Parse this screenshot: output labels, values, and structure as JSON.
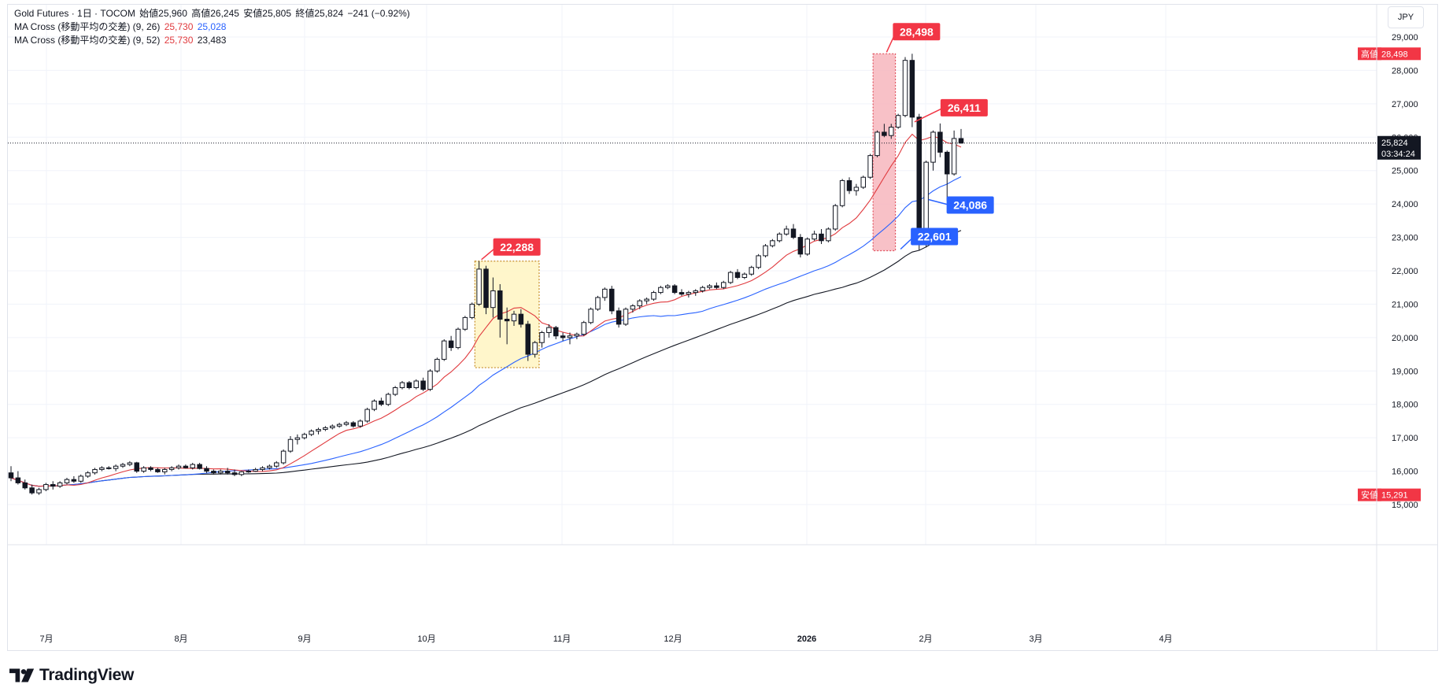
{
  "legend": {
    "symbol": "Gold Futures · 1日 · TOCOM",
    "open_label": "始値",
    "open": "25,960",
    "high_label": "高値",
    "high": "26,245",
    "low_label": "安値",
    "low": "25,805",
    "close_label": "終値",
    "close": "25,824",
    "change": "−241 (−0.92%)",
    "indicators": [
      {
        "name": "MA Cross (移動平均の交差) (9, 26)",
        "v1": "25,730",
        "v2": "25,028"
      },
      {
        "name": "MA Cross (移動平均の交差) (9, 52)",
        "v1": "25,730",
        "v2": "23,483"
      }
    ]
  },
  "currency": "JPY",
  "footer": {
    "logo_text": "TradingView"
  },
  "colors": {
    "up": "#ffffff",
    "down": "#131722",
    "ma_fast": "#e03a3e",
    "ma_mid": "#2962ff",
    "ma_slow": "#131722",
    "callout_red": "#f23645",
    "callout_blue": "#2962ff",
    "highlight_yellow": "#fff5c2",
    "highlight_red": "#f7b6bd"
  },
  "chart_data": {
    "type": "candlestick",
    "y_axis": {
      "ticks": [
        "15,000",
        "16,000",
        "17,000",
        "18,000",
        "19,000",
        "20,000",
        "21,000",
        "22,000",
        "23,000",
        "24,000",
        "25,000",
        "26,000",
        "27,000",
        "28,000",
        "29,000"
      ],
      "range": [
        14000,
        29500
      ]
    },
    "x_axis": {
      "ticks": [
        {
          "label": "7月",
          "bold": false
        },
        {
          "label": "8月",
          "bold": false
        },
        {
          "label": "9月",
          "bold": false
        },
        {
          "label": "10月",
          "bold": false
        },
        {
          "label": "11月",
          "bold": false
        },
        {
          "label": "12月",
          "bold": false
        },
        {
          "label": "2026",
          "bold": true
        },
        {
          "label": "2月",
          "bold": false
        },
        {
          "label": "3月",
          "bold": false
        },
        {
          "label": "4月",
          "bold": false
        }
      ]
    },
    "price_labels": [
      {
        "label": "高値",
        "value": "28,498",
        "price": 28498
      },
      {
        "label": "",
        "value": "25,824",
        "sub": "03:34:24",
        "price": 25824
      },
      {
        "label": "安値",
        "value": "15,291",
        "price": 15291
      }
    ],
    "callouts": [
      {
        "text": "22,288",
        "color": "red"
      },
      {
        "text": "28,498",
        "color": "red"
      },
      {
        "text": "26,411",
        "color": "red"
      },
      {
        "text": "24,086",
        "color": "blue"
      },
      {
        "text": "22,601",
        "color": "blue"
      }
    ],
    "highlight_zones": [
      {
        "color": "yellow",
        "high": 22288,
        "low": 19100
      },
      {
        "color": "red",
        "high": 28498,
        "low": 22601
      }
    ],
    "candles": [
      [
        15950,
        16150,
        15700,
        15800
      ],
      [
        15800,
        16000,
        15600,
        15650
      ],
      [
        15650,
        15750,
        15450,
        15500
      ],
      [
        15500,
        15600,
        15300,
        15350
      ],
      [
        15350,
        15500,
        15291,
        15450
      ],
      [
        15450,
        15650,
        15400,
        15600
      ],
      [
        15600,
        15700,
        15450,
        15550
      ],
      [
        15550,
        15700,
        15500,
        15650
      ],
      [
        15650,
        15800,
        15600,
        15750
      ],
      [
        15750,
        15850,
        15650,
        15700
      ],
      [
        15700,
        15900,
        15650,
        15850
      ],
      [
        15850,
        16000,
        15800,
        15950
      ],
      [
        15950,
        16100,
        15900,
        16050
      ],
      [
        16050,
        16150,
        16000,
        16100
      ],
      [
        16100,
        16150,
        16050,
        16080
      ],
      [
        16080,
        16200,
        16000,
        16150
      ],
      [
        16150,
        16250,
        16100,
        16200
      ],
      [
        16200,
        16300,
        16150,
        16250
      ],
      [
        16250,
        16280,
        15950,
        16000
      ],
      [
        16000,
        16150,
        15950,
        16100
      ],
      [
        16100,
        16150,
        16000,
        16050
      ],
      [
        16050,
        16100,
        15950,
        15980
      ],
      [
        15980,
        16100,
        15900,
        16050
      ],
      [
        16050,
        16150,
        16000,
        16100
      ],
      [
        16100,
        16200,
        16050,
        16150
      ],
      [
        16150,
        16200,
        16080,
        16100
      ],
      [
        16100,
        16250,
        16050,
        16200
      ],
      [
        16200,
        16250,
        16050,
        16080
      ],
      [
        16080,
        16150,
        15950,
        16000
      ],
      [
        16000,
        16050,
        15900,
        15950
      ],
      [
        15950,
        16050,
        15900,
        16000
      ],
      [
        16000,
        16100,
        15900,
        15950
      ],
      [
        15950,
        16050,
        15850,
        15900
      ],
      [
        15900,
        16000,
        15850,
        15980
      ],
      [
        15980,
        16050,
        15950,
        16000
      ],
      [
        16000,
        16100,
        15980,
        16050
      ],
      [
        16050,
        16150,
        16000,
        16100
      ],
      [
        16100,
        16200,
        16050,
        16150
      ],
      [
        16150,
        16300,
        16100,
        16250
      ],
      [
        16250,
        16650,
        16200,
        16600
      ],
      [
        16600,
        17050,
        16550,
        16950
      ],
      [
        16950,
        17100,
        16800,
        17000
      ],
      [
        17000,
        17150,
        16950,
        17100
      ],
      [
        17100,
        17250,
        17050,
        17200
      ],
      [
        17200,
        17300,
        17100,
        17250
      ],
      [
        17250,
        17350,
        17200,
        17300
      ],
      [
        17300,
        17400,
        17250,
        17350
      ],
      [
        17350,
        17450,
        17300,
        17400
      ],
      [
        17400,
        17500,
        17350,
        17450
      ],
      [
        17450,
        17500,
        17300,
        17350
      ],
      [
        17350,
        17550,
        17300,
        17500
      ],
      [
        17500,
        17900,
        17450,
        17850
      ],
      [
        17850,
        18150,
        17800,
        18100
      ],
      [
        18100,
        18200,
        17950,
        18000
      ],
      [
        18000,
        18350,
        17950,
        18300
      ],
      [
        18300,
        18550,
        18250,
        18500
      ],
      [
        18500,
        18700,
        18450,
        18650
      ],
      [
        18650,
        18700,
        18450,
        18500
      ],
      [
        18500,
        18750,
        18450,
        18700
      ],
      [
        18700,
        18800,
        18400,
        18450
      ],
      [
        18450,
        19050,
        18400,
        19000
      ],
      [
        19000,
        19400,
        18950,
        19350
      ],
      [
        19350,
        19950,
        19300,
        19900
      ],
      [
        19900,
        20050,
        19600,
        19700
      ],
      [
        19700,
        20300,
        19650,
        20250
      ],
      [
        20250,
        20650,
        20200,
        20600
      ],
      [
        20600,
        21050,
        20550,
        21000
      ],
      [
        21000,
        22288,
        20950,
        22050
      ],
      [
        22050,
        22150,
        20700,
        20900
      ],
      [
        20900,
        21800,
        20600,
        21400
      ],
      [
        21400,
        21600,
        20000,
        20550
      ],
      [
        20550,
        20900,
        19800,
        20500
      ],
      [
        20500,
        20800,
        20350,
        20700
      ],
      [
        20700,
        20850,
        20300,
        20400
      ],
      [
        20400,
        20500,
        19300,
        19500
      ],
      [
        19500,
        19900,
        19400,
        19850
      ],
      [
        19850,
        20200,
        19700,
        20150
      ],
      [
        20150,
        20400,
        20000,
        20300
      ],
      [
        20300,
        20350,
        19950,
        20050
      ],
      [
        20050,
        20150,
        19900,
        20000
      ],
      [
        20000,
        20150,
        19800,
        20050
      ],
      [
        20050,
        20150,
        19950,
        20100
      ],
      [
        20100,
        20500,
        20050,
        20450
      ],
      [
        20450,
        20900,
        20400,
        20850
      ],
      [
        20850,
        21250,
        20800,
        21200
      ],
      [
        21200,
        21500,
        21100,
        21450
      ],
      [
        21450,
        21550,
        20700,
        20800
      ],
      [
        20800,
        20900,
        20300,
        20400
      ],
      [
        20400,
        20900,
        20350,
        20850
      ],
      [
        20850,
        21000,
        20750,
        20950
      ],
      [
        20950,
        21150,
        20850,
        21100
      ],
      [
        21100,
        21200,
        21000,
        21150
      ],
      [
        21150,
        21400,
        21100,
        21350
      ],
      [
        21350,
        21550,
        21300,
        21500
      ],
      [
        21500,
        21600,
        21450,
        21550
      ],
      [
        21550,
        21600,
        21300,
        21350
      ],
      [
        21350,
        21450,
        21250,
        21300
      ],
      [
        21300,
        21400,
        21200,
        21350
      ],
      [
        21350,
        21450,
        21250,
        21400
      ],
      [
        21400,
        21550,
        21350,
        21500
      ],
      [
        21500,
        21600,
        21450,
        21550
      ],
      [
        21550,
        21650,
        21450,
        21500
      ],
      [
        21500,
        21700,
        21450,
        21650
      ],
      [
        21650,
        22000,
        21600,
        21950
      ],
      [
        21950,
        22050,
        21750,
        21800
      ],
      [
        21800,
        21950,
        21750,
        21900
      ],
      [
        21900,
        22150,
        21850,
        22100
      ],
      [
        22100,
        22500,
        22050,
        22450
      ],
      [
        22450,
        22800,
        22400,
        22750
      ],
      [
        22750,
        22950,
        22700,
        22900
      ],
      [
        22900,
        23150,
        22850,
        23100
      ],
      [
        23100,
        23350,
        23050,
        23250
      ],
      [
        23250,
        23400,
        22950,
        23000
      ],
      [
        23000,
        23100,
        22400,
        22500
      ],
      [
        22500,
        23000,
        22450,
        22950
      ],
      [
        22950,
        23200,
        22900,
        23100
      ],
      [
        23100,
        23250,
        22800,
        22900
      ],
      [
        22900,
        23300,
        22850,
        23250
      ],
      [
        23250,
        24000,
        23200,
        23950
      ],
      [
        23950,
        24750,
        23900,
        24700
      ],
      [
        24700,
        24800,
        24300,
        24400
      ],
      [
        24400,
        24600,
        24250,
        24500
      ],
      [
        24500,
        24850,
        24450,
        24800
      ],
      [
        24800,
        25500,
        24750,
        25450
      ],
      [
        25450,
        26200,
        25400,
        26150
      ],
      [
        26150,
        26400,
        26000,
        26050
      ],
      [
        26050,
        26400,
        25950,
        26300
      ],
      [
        26300,
        26700,
        26250,
        26650
      ],
      [
        26650,
        28400,
        26600,
        28300
      ],
      [
        28300,
        28498,
        26300,
        26600
      ],
      [
        26600,
        26700,
        22601,
        22800
      ],
      [
        22800,
        25300,
        22700,
        25250
      ],
      [
        25250,
        26200,
        25000,
        26150
      ],
      [
        26150,
        26411,
        25400,
        25550
      ],
      [
        25550,
        25600,
        24100,
        24900
      ],
      [
        24900,
        26200,
        24850,
        25960
      ],
      [
        25960,
        26245,
        25805,
        25824
      ]
    ],
    "ma_fast_name": "MA 9",
    "ma_mid_name": "MA 26",
    "ma_slow_name": "MA 52"
  }
}
